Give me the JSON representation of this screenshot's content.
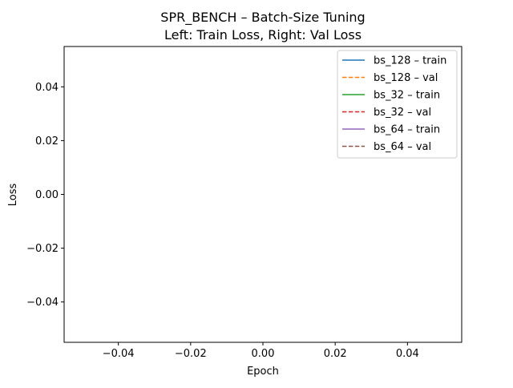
{
  "chart_data": {
    "type": "line",
    "title": "SPR_BENCH – Batch-Size Tuning",
    "subtitle": "Left: Train Loss, Right: Val Loss",
    "xlabel": "Epoch",
    "ylabel": "Loss",
    "xlim": [
      -0.055,
      0.055
    ],
    "ylim": [
      -0.055,
      0.055
    ],
    "xticks": [
      -0.04,
      -0.02,
      0.0,
      0.02,
      0.04
    ],
    "xtick_labels": [
      "−0.04",
      "−0.02",
      "0.00",
      "0.02",
      "0.04"
    ],
    "yticks": [
      0.04,
      0.02,
      0.0,
      -0.02,
      -0.04
    ],
    "ytick_labels": [
      "0.04",
      "0.02",
      "0.00",
      "−0.02",
      "−0.04"
    ],
    "grid": false,
    "legend_position": "top-right",
    "series": [
      {
        "name": "bs_128 – train",
        "color": "#1f77b4",
        "dash": "solid",
        "x": [],
        "y": []
      },
      {
        "name": "bs_128 – val",
        "color": "#ff7f0e",
        "dash": "dashed",
        "x": [],
        "y": []
      },
      {
        "name": "bs_32 – train",
        "color": "#2ca02c",
        "dash": "solid",
        "x": [],
        "y": []
      },
      {
        "name": "bs_32 – val",
        "color": "#d62728",
        "dash": "dashed",
        "x": [],
        "y": []
      },
      {
        "name": "bs_64 – train",
        "color": "#9467bd",
        "dash": "solid",
        "x": [],
        "y": []
      },
      {
        "name": "bs_64 – val",
        "color": "#8c564b",
        "dash": "dashed",
        "x": [],
        "y": []
      }
    ]
  }
}
